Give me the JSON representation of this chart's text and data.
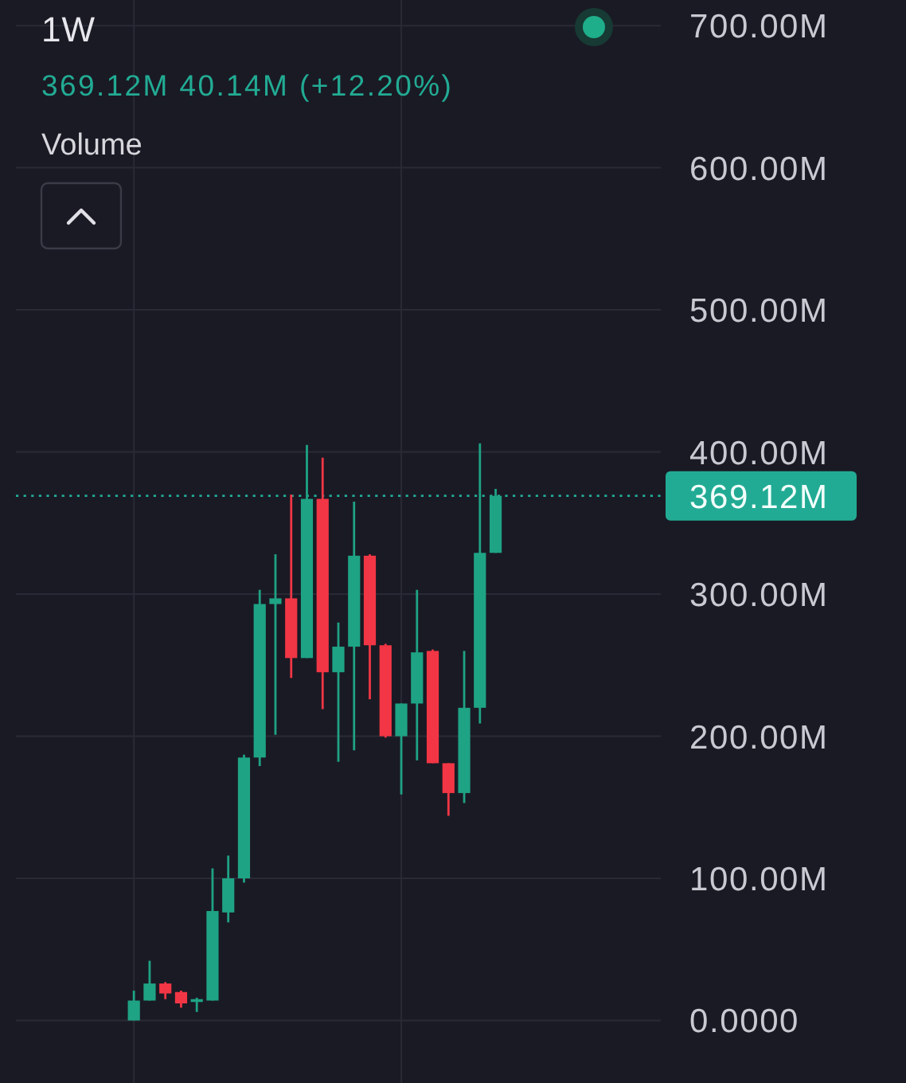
{
  "chart_data": {
    "type": "candlestick",
    "title": "1W",
    "subtitle": "369.12M 40.14M (+12.20%)",
    "annotations": [
      "Volume"
    ],
    "categories": [
      null,
      null,
      null,
      null,
      null,
      null,
      null,
      null,
      null,
      null,
      null,
      null,
      null,
      null,
      null,
      null,
      null,
      null,
      null,
      null,
      null,
      null,
      null,
      null,
      null,
      null,
      null,
      null,
      null,
      null,
      null,
      null,
      null,
      null,
      null,
      null,
      null,
      null,
      null,
      null,
      null
    ],
    "ohlc": [
      null,
      null,
      null,
      null,
      null,
      null,
      null,
      [
        0,
        21,
        0,
        14
      ],
      [
        14,
        42,
        14,
        26
      ],
      [
        26,
        27,
        15,
        19
      ],
      [
        20,
        21,
        9,
        12
      ],
      [
        13,
        16,
        6,
        15
      ],
      [
        14,
        107,
        14,
        77
      ],
      [
        76,
        116,
        69,
        100
      ],
      [
        100,
        187,
        97,
        185
      ],
      [
        185,
        303,
        179,
        293
      ],
      [
        293,
        328,
        201,
        297
      ],
      [
        297,
        370,
        241,
        255
      ],
      [
        255,
        405,
        255,
        367
      ],
      [
        367,
        396,
        219,
        245
      ],
      [
        245,
        280,
        182,
        263
      ],
      [
        263,
        365,
        190,
        327
      ],
      [
        327,
        328,
        226,
        264
      ],
      [
        264,
        265,
        199,
        200
      ],
      [
        200,
        223,
        159,
        223
      ],
      [
        223,
        303,
        183,
        259
      ],
      [
        260,
        261,
        181,
        181
      ],
      [
        181,
        181,
        144,
        160
      ],
      [
        160,
        260,
        153,
        220
      ],
      [
        220,
        406,
        209,
        329
      ],
      [
        329,
        374,
        329,
        369.12
      ],
      null,
      null,
      null,
      null,
      null,
      null,
      null,
      null,
      null,
      null
    ],
    "colors": [
      null,
      null,
      null,
      null,
      null,
      null,
      null,
      "#1fa385",
      "#1fa385",
      "#f23645",
      "#f23645",
      "#1fa385",
      "#1fa385",
      "#1fa385",
      "#1fa385",
      "#1fa385",
      "#1fa385",
      "#f23645",
      "#1fa385",
      "#f23645",
      "#1fa385",
      "#1fa385",
      "#f23645",
      "#f23645",
      "#1fa385",
      "#1fa385",
      "#f23645",
      "#f23645",
      "#1fa385",
      "#1fa385",
      "#1fa385",
      null,
      null,
      null,
      null,
      null,
      null,
      null,
      null,
      null,
      null
    ],
    "ylim": [
      -44,
      718
    ],
    "yticks": [
      {
        "value": 0,
        "label": "0.0000"
      },
      {
        "value": 100,
        "label": "100.00M"
      },
      {
        "value": 200,
        "label": "200.00M"
      },
      {
        "value": 300,
        "label": "300.00M"
      },
      {
        "value": 400,
        "label": "400.00M"
      },
      {
        "value": 500,
        "label": "500.00M"
      },
      {
        "value": 600,
        "label": "600.00M"
      },
      {
        "value": 700,
        "label": "700.00M"
      }
    ],
    "grid": "y",
    "tick_labels": "y",
    "ref_lines": [
      {
        "axis": "y",
        "value": 369.12,
        "label": "369.12M",
        "color": "#22ab94",
        "line_style": "dotted"
      }
    ]
  }
}
